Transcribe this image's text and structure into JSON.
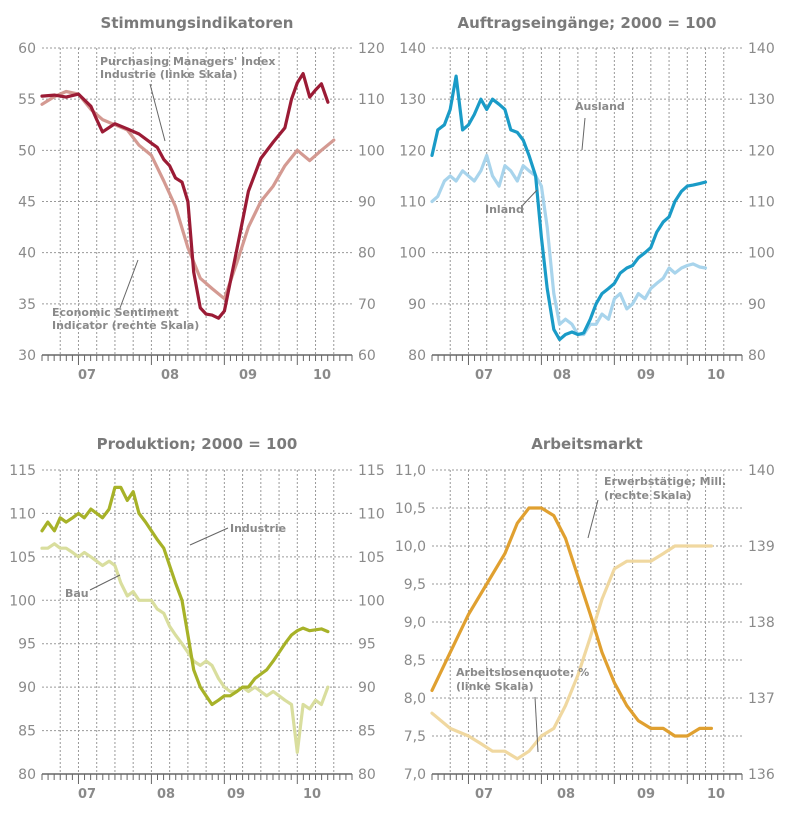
{
  "chart_data": [
    {
      "type": "line",
      "title": "Stimmungsindikatoren",
      "x_labels": [
        "07",
        "08",
        "09",
        "10"
      ],
      "x_range": [
        2006.5,
        2010.75
      ],
      "y_left": {
        "ylim": [
          30,
          60
        ],
        "ticks": [
          30,
          35,
          40,
          45,
          50,
          55,
          60
        ]
      },
      "y_right": {
        "ylim": [
          60,
          120
        ],
        "ticks": [
          60,
          70,
          80,
          90,
          100,
          110,
          120
        ]
      },
      "grid": true,
      "series": [
        {
          "name": "Purchasing Managers' Index Industrie (linke Skala)",
          "axis": "left",
          "color": "#9b1b35",
          "x": [
            2006.5,
            2006.67,
            2006.83,
            2007.0,
            2007.17,
            2007.25,
            2007.33,
            2007.5,
            2007.67,
            2007.83,
            2008.0,
            2008.08,
            2008.17,
            2008.25,
            2008.33,
            2008.42,
            2008.5,
            2008.58,
            2008.67,
            2008.75,
            2008.83,
            2008.92,
            2009.0,
            2009.17,
            2009.33,
            2009.5,
            2009.67,
            2009.83,
            2009.92,
            2010.0,
            2010.08,
            2010.17,
            2010.25,
            2010.33,
            2010.42
          ],
          "y": [
            55.3,
            55.4,
            55.2,
            55.5,
            54.3,
            53.0,
            51.8,
            52.6,
            52.1,
            51.6,
            50.7,
            50.3,
            49.1,
            48.5,
            47.3,
            46.9,
            45.0,
            38.1,
            34.6,
            34.0,
            33.9,
            33.6,
            34.3,
            40.3,
            46.0,
            49.2,
            50.8,
            52.2,
            55.0,
            56.6,
            57.5,
            55.2,
            55.9,
            56.5,
            54.7
          ]
        },
        {
          "name": "Economic Sentiment Indicator (rechte Skala)",
          "axis": "right",
          "color": "#d49a92",
          "x": [
            2006.5,
            2006.67,
            2006.83,
            2007.0,
            2007.17,
            2007.33,
            2007.5,
            2007.67,
            2007.83,
            2008.0,
            2008.17,
            2008.33,
            2008.5,
            2008.67,
            2008.83,
            2009.0,
            2009.17,
            2009.33,
            2009.5,
            2009.67,
            2009.83,
            2010.0,
            2010.17,
            2010.33,
            2010.5
          ],
          "y": [
            109,
            110.5,
            111.5,
            111,
            108,
            106,
            105,
            104,
            101,
            99,
            94,
            89,
            81,
            75,
            73,
            71,
            78,
            85,
            90,
            93,
            97,
            100,
            98,
            100,
            102
          ]
        }
      ],
      "annotations": [
        [
          "Purchasing Managers' Index",
          "Industrie (linke Skala)"
        ],
        [
          "Economic Sentiment",
          "Indicator (rechte Skala)"
        ]
      ]
    },
    {
      "type": "line",
      "title": "Auftragseingänge; 2000 = 100",
      "x_labels": [
        "07",
        "08",
        "09",
        "10"
      ],
      "x_range": [
        2006.5,
        2010.75
      ],
      "y_left": {
        "ylim": [
          80,
          140
        ],
        "ticks": [
          80,
          90,
          100,
          110,
          120,
          130,
          140
        ]
      },
      "y_right": {
        "ylim": [
          80,
          140
        ],
        "ticks": [
          80,
          90,
          100,
          110,
          120,
          130,
          140
        ]
      },
      "grid": true,
      "series": [
        {
          "name": "Ausland",
          "axis": "left",
          "color": "#1a9bc7",
          "x": [
            2006.5,
            2006.58,
            2006.67,
            2006.75,
            2006.83,
            2006.92,
            2007.0,
            2007.08,
            2007.17,
            2007.25,
            2007.33,
            2007.42,
            2007.5,
            2007.58,
            2007.67,
            2007.75,
            2007.83,
            2007.92,
            2008.0,
            2008.08,
            2008.17,
            2008.25,
            2008.33,
            2008.42,
            2008.5,
            2008.58,
            2008.67,
            2008.75,
            2008.83,
            2008.92,
            2009.0,
            2009.08,
            2009.17,
            2009.25,
            2009.33,
            2009.42,
            2009.5,
            2009.58,
            2009.67,
            2009.75,
            2009.83,
            2009.92,
            2010.0,
            2010.08,
            2010.17,
            2010.25
          ],
          "y": [
            119,
            124,
            125,
            128,
            134.5,
            124,
            125,
            127,
            130,
            128,
            130,
            129,
            128,
            124,
            123.5,
            122,
            119,
            115,
            103,
            93,
            85,
            83,
            84,
            84.5,
            84,
            84.3,
            87,
            90,
            92,
            93,
            94,
            96,
            97,
            97.5,
            99,
            100,
            101,
            104,
            106,
            107,
            110,
            112,
            113,
            113.2,
            113.5,
            113.8
          ]
        },
        {
          "name": "Inland",
          "axis": "left",
          "color": "#a8d4ec",
          "x": [
            2006.5,
            2006.58,
            2006.67,
            2006.75,
            2006.83,
            2006.92,
            2007.0,
            2007.08,
            2007.17,
            2007.25,
            2007.33,
            2007.42,
            2007.5,
            2007.58,
            2007.67,
            2007.75,
            2007.83,
            2007.92,
            2008.0,
            2008.08,
            2008.17,
            2008.25,
            2008.33,
            2008.42,
            2008.5,
            2008.58,
            2008.67,
            2008.75,
            2008.83,
            2008.92,
            2009.0,
            2009.08,
            2009.17,
            2009.25,
            2009.33,
            2009.42,
            2009.5,
            2009.58,
            2009.67,
            2009.75,
            2009.83,
            2009.92,
            2010.0,
            2010.08,
            2010.17,
            2010.25
          ],
          "y": [
            110,
            111,
            114,
            115,
            114,
            116,
            115,
            114,
            116,
            119,
            115,
            113,
            117,
            116,
            114,
            117,
            116,
            115,
            113,
            105,
            92,
            86,
            87,
            86,
            84,
            84,
            86,
            86,
            88,
            87,
            91,
            92,
            89,
            90,
            92,
            91,
            93,
            94,
            95,
            97,
            96,
            97,
            97.5,
            97.8,
            97.2,
            97
          ]
        }
      ],
      "annotations": [
        [
          "Ausland"
        ],
        [
          "Inland"
        ]
      ]
    },
    {
      "type": "line",
      "title": "Produktion; 2000 = 100",
      "x_labels": [
        "07",
        "08",
        "09",
        "10"
      ],
      "x_range": [
        2006.5,
        2010.75
      ],
      "y_left": {
        "ylim": [
          80,
          115
        ],
        "ticks": [
          80,
          85,
          90,
          95,
          100,
          105,
          110,
          115
        ]
      },
      "y_right": {
        "ylim": [
          80,
          115
        ],
        "ticks": [
          80,
          85,
          90,
          95,
          100,
          105,
          110,
          115
        ]
      },
      "grid": true,
      "series": [
        {
          "name": "Industrie",
          "axis": "left",
          "color": "#a7b228",
          "x": [
            2006.5,
            2006.58,
            2006.67,
            2006.75,
            2006.83,
            2006.92,
            2007.0,
            2007.08,
            2007.17,
            2007.25,
            2007.33,
            2007.42,
            2007.5,
            2007.58,
            2007.67,
            2007.75,
            2007.83,
            2007.92,
            2008.0,
            2008.08,
            2008.17,
            2008.25,
            2008.33,
            2008.42,
            2008.5,
            2008.58,
            2008.67,
            2008.75,
            2008.83,
            2008.92,
            2009.0,
            2009.08,
            2009.17,
            2009.25,
            2009.33,
            2009.42,
            2009.5,
            2009.58,
            2009.67,
            2009.75,
            2009.83,
            2009.92,
            2010.0,
            2010.08,
            2010.17,
            2010.25,
            2010.33,
            2010.42
          ],
          "y": [
            108,
            109,
            108,
            109.5,
            109,
            109.5,
            110,
            109.5,
            110.5,
            110,
            109.5,
            110.5,
            113,
            113,
            111.5,
            112.5,
            110,
            109,
            108,
            107,
            106,
            104,
            102,
            100,
            96,
            92,
            90,
            89,
            88,
            88.5,
            89,
            89,
            89.5,
            90,
            90,
            91,
            91.5,
            92,
            93,
            94,
            95,
            96,
            96.5,
            96.8,
            96.5,
            96.6,
            96.7,
            96.4
          ]
        },
        {
          "name": "Bau",
          "axis": "left",
          "color": "#d9de9e",
          "x": [
            2006.5,
            2006.58,
            2006.67,
            2006.75,
            2006.83,
            2006.92,
            2007.0,
            2007.08,
            2007.17,
            2007.25,
            2007.33,
            2007.42,
            2007.5,
            2007.58,
            2007.67,
            2007.75,
            2007.83,
            2007.92,
            2008.0,
            2008.08,
            2008.17,
            2008.25,
            2008.33,
            2008.42,
            2008.5,
            2008.58,
            2008.67,
            2008.75,
            2008.83,
            2008.92,
            2009.0,
            2009.08,
            2009.17,
            2009.25,
            2009.33,
            2009.42,
            2009.5,
            2009.58,
            2009.67,
            2009.75,
            2009.83,
            2009.92,
            2010.0,
            2010.08,
            2010.17,
            2010.25,
            2010.33,
            2010.42
          ],
          "y": [
            106,
            106,
            106.5,
            106,
            106,
            105.5,
            105,
            105.5,
            105,
            104.5,
            104,
            104.5,
            104,
            102,
            100.5,
            101,
            100,
            100,
            100,
            99,
            98.5,
            97,
            96,
            95,
            94,
            93,
            92.5,
            93,
            92.5,
            91,
            90,
            89.5,
            89.5,
            90,
            89.5,
            90,
            89.5,
            89,
            89.5,
            89,
            88.5,
            88,
            82.5,
            88,
            87.5,
            88.5,
            88,
            90
          ]
        }
      ],
      "annotations": [
        [
          "Industrie"
        ],
        [
          "Bau"
        ]
      ]
    },
    {
      "type": "line",
      "title": "Arbeitsmarkt",
      "x_labels": [
        "07",
        "08",
        "09",
        "10"
      ],
      "x_range": [
        2006.5,
        2010.75
      ],
      "y_left": {
        "ylim": [
          7.0,
          11.0
        ],
        "ticks": [
          "7,0",
          "7,5",
          "8,0",
          "8,5",
          "9,0",
          "9,5",
          "10,0",
          "10,5",
          "11,0"
        ]
      },
      "y_right": {
        "ylim": [
          136,
          140
        ],
        "ticks": [
          "136",
          "137",
          "138",
          "139",
          "140"
        ]
      },
      "grid": true,
      "series": [
        {
          "name": "Erwerbstätige; Mill. (rechte Skala)",
          "axis": "right",
          "color": "#e0a030",
          "x": [
            2006.5,
            2006.75,
            2007.0,
            2007.25,
            2007.5,
            2007.67,
            2007.83,
            2008.0,
            2008.17,
            2008.33,
            2008.5,
            2008.67,
            2008.83,
            2009.0,
            2009.17,
            2009.33,
            2009.5,
            2009.67,
            2009.83,
            2010.0,
            2010.17,
            2010.33
          ],
          "y": [
            137.1,
            137.6,
            138.1,
            138.5,
            138.9,
            139.3,
            139.5,
            139.5,
            139.4,
            139.1,
            138.6,
            138.1,
            137.6,
            137.2,
            136.9,
            136.7,
            136.6,
            136.6,
            136.5,
            136.5,
            136.6,
            136.6
          ]
        },
        {
          "name": "Arbeitslosenquote; % (linke Skala)",
          "axis": "left",
          "color": "#f0d8a0",
          "x": [
            2006.5,
            2006.75,
            2007.0,
            2007.17,
            2007.33,
            2007.5,
            2007.67,
            2007.83,
            2008.0,
            2008.17,
            2008.33,
            2008.5,
            2008.67,
            2008.83,
            2009.0,
            2009.17,
            2009.33,
            2009.5,
            2009.67,
            2009.83,
            2010.0,
            2010.17,
            2010.33
          ],
          "y": [
            7.8,
            7.6,
            7.5,
            7.4,
            7.3,
            7.3,
            7.2,
            7.3,
            7.5,
            7.6,
            7.9,
            8.3,
            8.8,
            9.3,
            9.7,
            9.8,
            9.8,
            9.8,
            9.9,
            10.0,
            10.0,
            10.0,
            10.0
          ]
        }
      ],
      "annotations": [
        [
          "Erwerbstätige; Mill.",
          "(rechte Skala)"
        ],
        [
          "Arbeitslosenquote; %",
          "(linke Skala)"
        ]
      ]
    }
  ]
}
